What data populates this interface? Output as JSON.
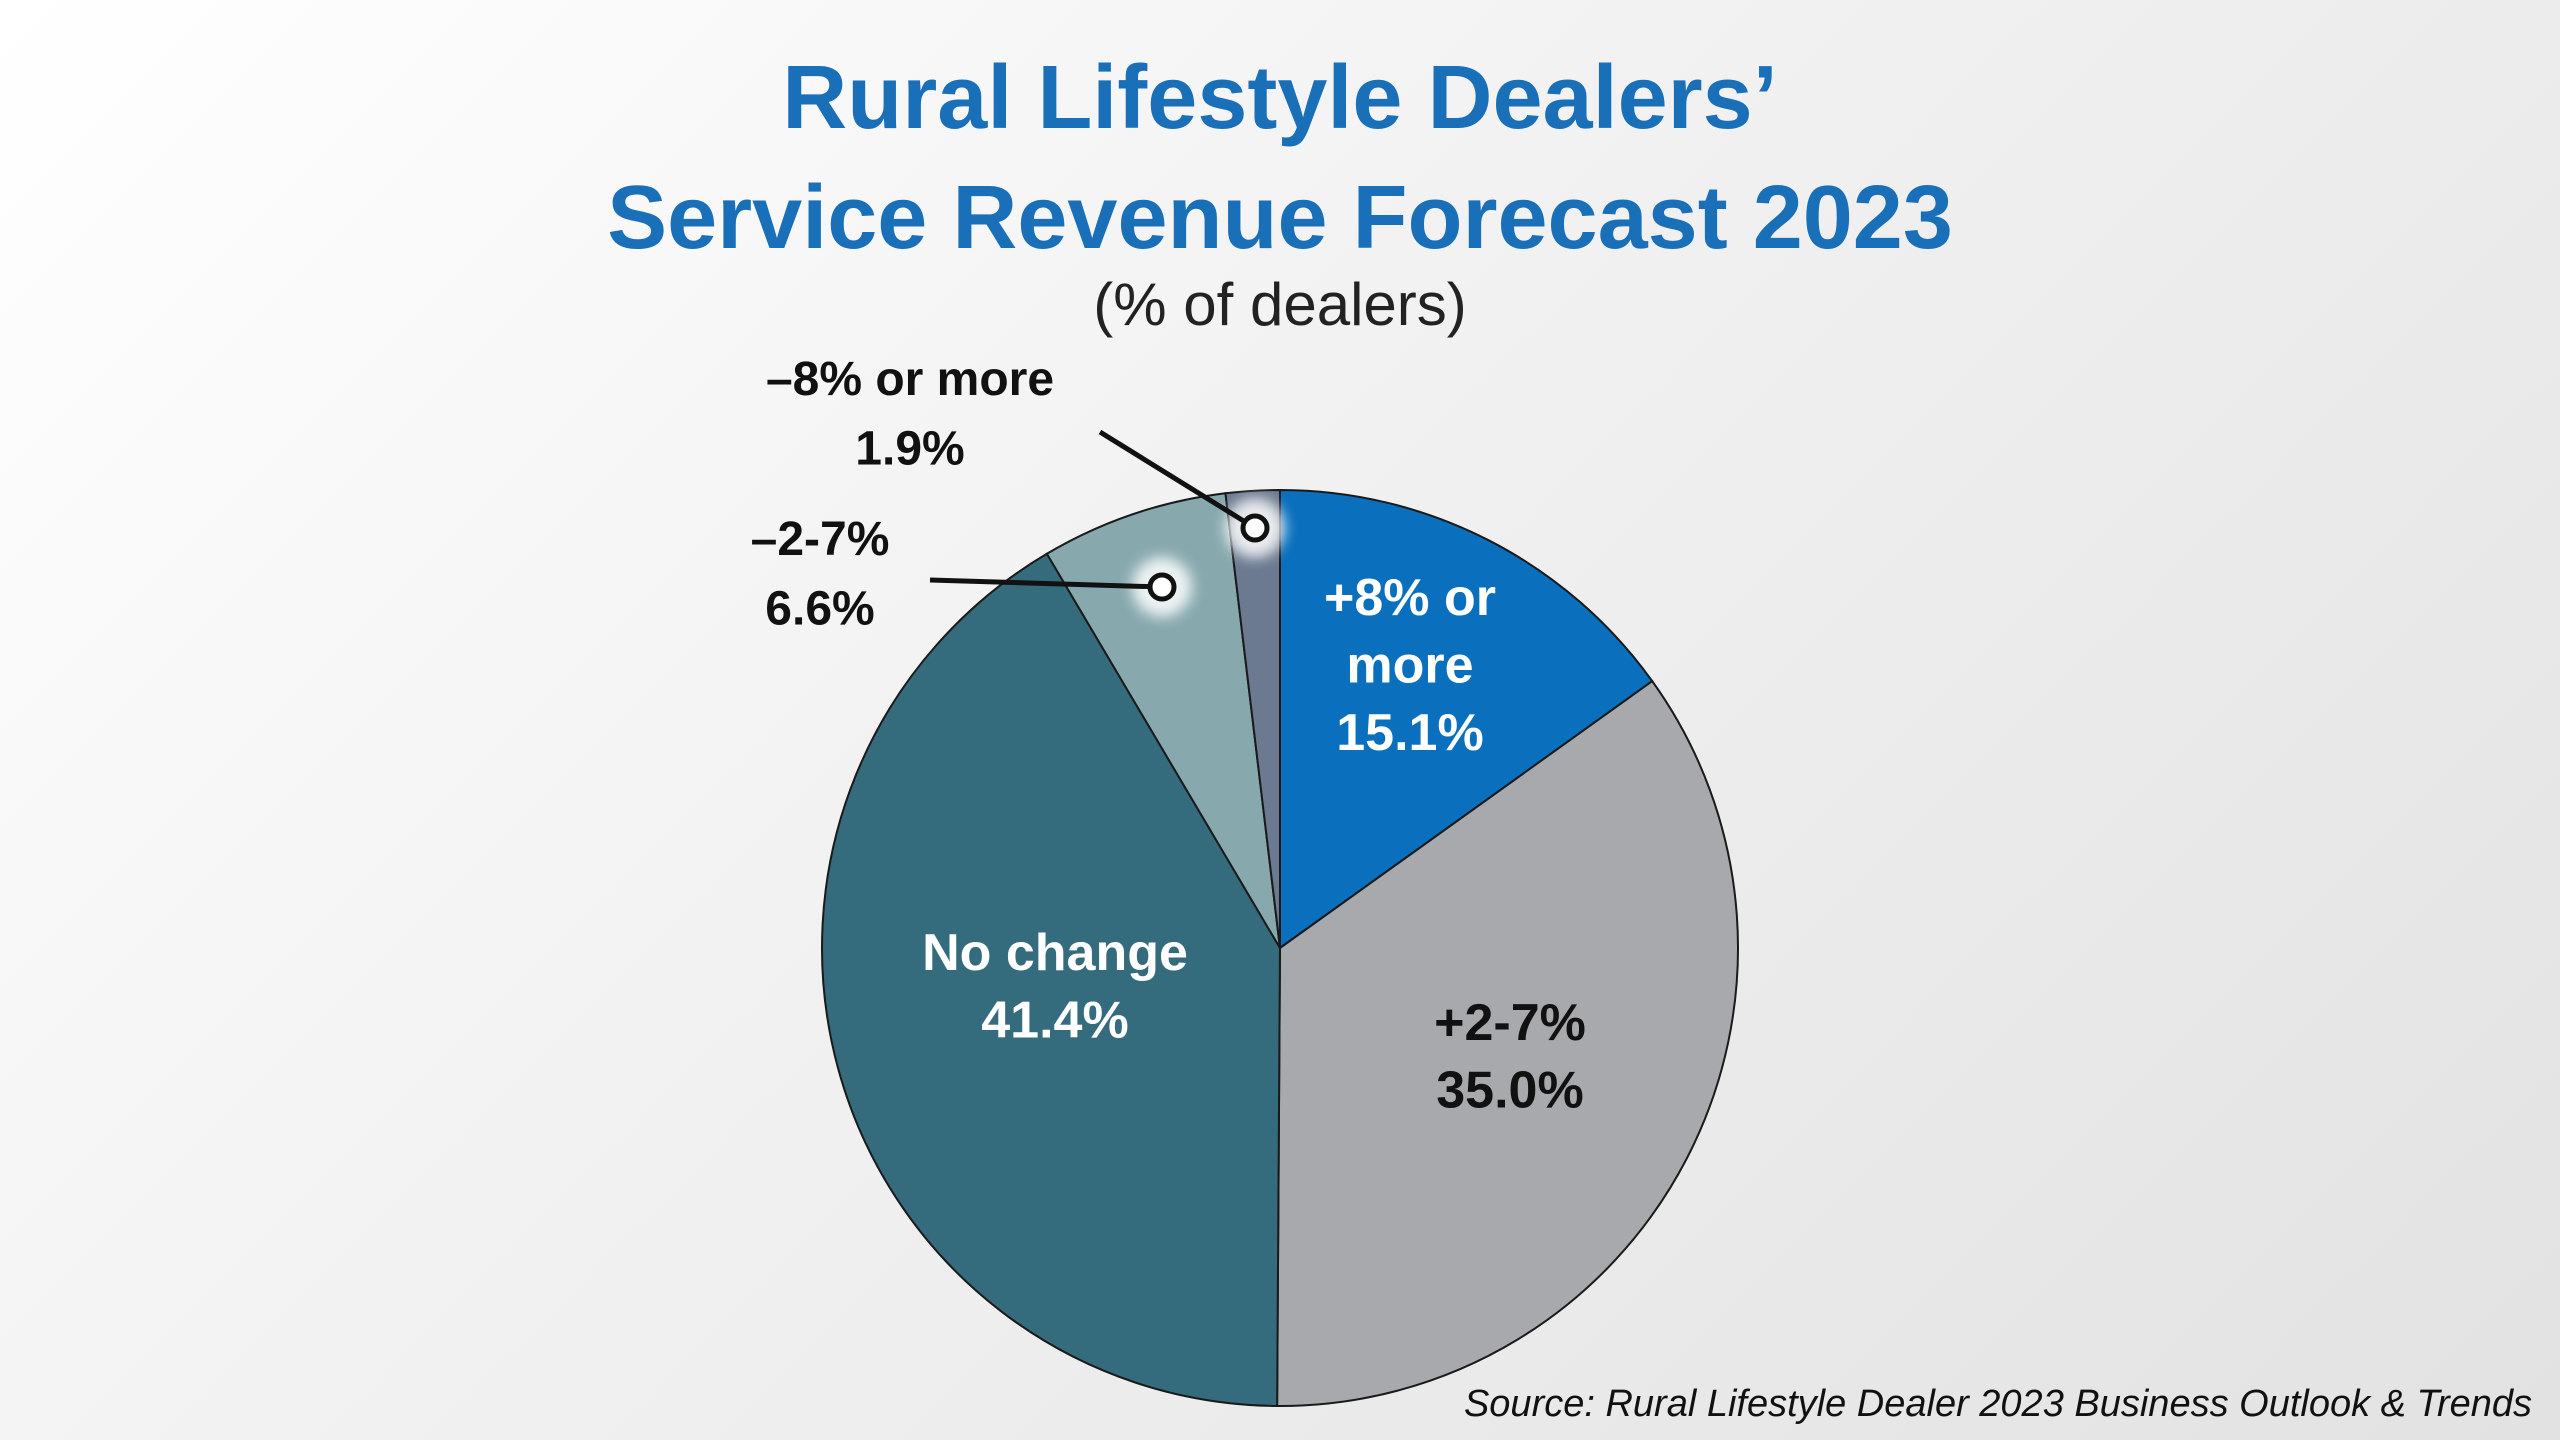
{
  "chart_data": {
    "type": "pie",
    "title_line1": "Rural Lifestyle Dealers’",
    "title_line2": "Service Revenue Forecast 2023",
    "subtitle": "(% of dealers)",
    "slices": [
      {
        "label_lines": [
          "+8% or",
          "more"
        ],
        "value": 15.1,
        "value_text": "15.1%",
        "color": "#0a6fbd",
        "text_color": "#ffffff",
        "callout": false
      },
      {
        "label_lines": [
          "+2-7%"
        ],
        "value": 35.0,
        "value_text": "35.0%",
        "color": "#a7a9ac",
        "text_color": "#111111",
        "callout": false
      },
      {
        "label_lines": [
          "No change"
        ],
        "value": 41.4,
        "value_text": "41.4%",
        "color": "#346b7d",
        "text_color": "#ffffff",
        "callout": false
      },
      {
        "label_lines": [
          "–2-7%"
        ],
        "value": 6.6,
        "value_text": "6.6%",
        "color": "#87a9ae",
        "text_color": "#111111",
        "callout": true
      },
      {
        "label_lines": [
          "–8% or more"
        ],
        "value": 1.9,
        "value_text": "1.9%",
        "color": "#6b7a90",
        "text_color": "#111111",
        "callout": true
      }
    ],
    "source": "Source: Rural Lifestyle Dealer 2023 Business Outlook & Trends"
  }
}
